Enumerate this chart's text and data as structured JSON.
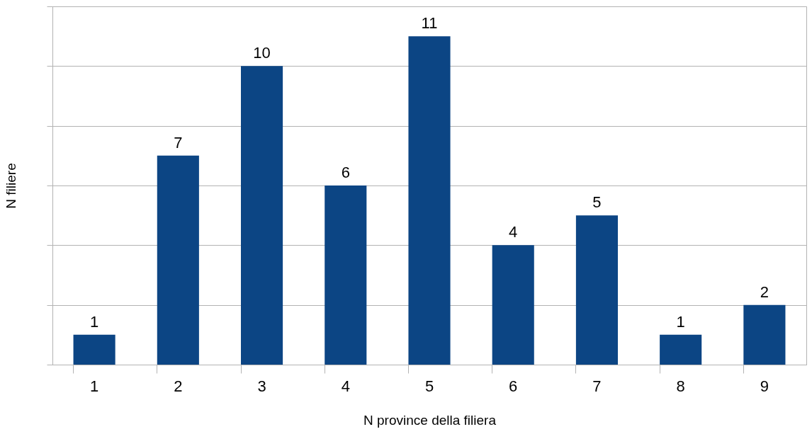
{
  "chart_data": {
    "type": "bar",
    "xlabel": "N province della filiera",
    "ylabel": "N filiere",
    "categories": [
      "1",
      "2",
      "3",
      "4",
      "5",
      "6",
      "7",
      "8",
      "9"
    ],
    "values": [
      1,
      7,
      10,
      6,
      11,
      4,
      5,
      1,
      2
    ],
    "color": "#0c4584",
    "ylim": [
      0,
      12
    ],
    "yticks": [
      {
        "value": 0,
        "label": null
      },
      {
        "value": 2,
        "label": null
      },
      {
        "value": 4,
        "label": null
      },
      {
        "value": 6,
        "label": null
      },
      {
        "value": 8,
        "label": null
      },
      {
        "value": 10,
        "label": null
      },
      {
        "value": 12,
        "label": null
      }
    ],
    "tick_labels": "x",
    "grid": "y",
    "data_labels": true
  }
}
